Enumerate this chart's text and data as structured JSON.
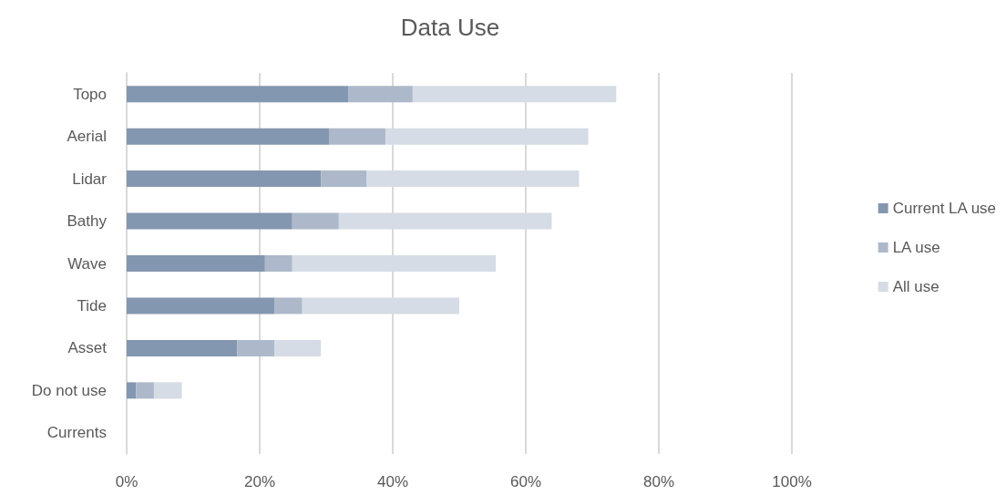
{
  "chart_data": {
    "type": "bar",
    "title": "Data Use",
    "orientation": "horizontal",
    "stacked": true,
    "categories": [
      "Topo",
      "Aerial",
      "Lidar",
      "Bathy",
      "Wave",
      "Tide",
      "Asset",
      "Do not use",
      "Currents"
    ],
    "series": [
      {
        "name": "Current LA use",
        "color": "#8497b0",
        "values": [
          33.3,
          30.5,
          29.2,
          24.9,
          20.8,
          22.2,
          16.6,
          1.4,
          0
        ]
      },
      {
        "name": "LA use",
        "color": "#adb9ca",
        "values": [
          9.7,
          8.4,
          6.9,
          7.0,
          4.1,
          4.2,
          5.6,
          2.7,
          0
        ]
      },
      {
        "name": "All use",
        "color": "#d6dce5",
        "values": [
          30.6,
          30.5,
          31.9,
          32.0,
          30.6,
          23.6,
          7.0,
          4.2,
          0
        ]
      }
    ],
    "xlim": [
      0,
      100
    ],
    "xticks": [
      {
        "value": 0,
        "label": "0%"
      },
      {
        "value": 20,
        "label": "20%"
      },
      {
        "value": 40,
        "label": "40%"
      },
      {
        "value": 60,
        "label": "60%"
      },
      {
        "value": 80,
        "label": "80%"
      },
      {
        "value": 100,
        "label": "100%"
      }
    ],
    "grid": "x",
    "legend": "right"
  }
}
